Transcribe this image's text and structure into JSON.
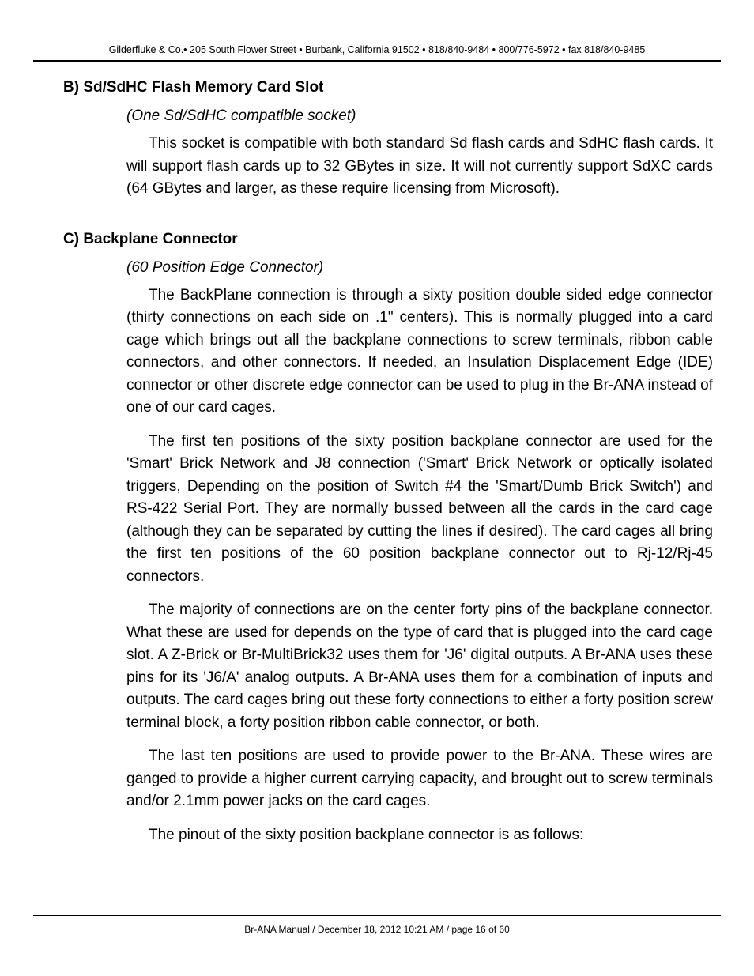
{
  "header": {
    "text": "Gilderfluke & Co.• 205 South Flower Street • Burbank, California 91502 • 818/840-9484 • 800/776-5972 • fax 818/840-9485"
  },
  "sections": {
    "b": {
      "heading": "B) Sd/SdHC Flash Memory Card Slot",
      "subtitle": "(One Sd/SdHC compatible socket)",
      "p1": "This socket is compatible with both standard Sd flash cards and SdHC flash cards. It will support flash cards up to 32 GBytes in size. It will not currently support SdXC cards (64 GBytes and larger, as these require licensing from Microsoft)."
    },
    "c": {
      "heading": "C) Backplane Connector",
      "subtitle": "(60 Position Edge Connector)",
      "p1": "The BackPlane connection is through a sixty position double sided edge connector (thirty connections on each side on .1\" centers). This is normally plugged into a card cage which brings out all the backplane connections to screw terminals, ribbon cable connectors, and other connectors. If needed, an Insulation Displacement Edge (IDE) connector or other discrete edge connector can be used to plug in the Br-ANA instead of one of our card cages.",
      "p2": "The first ten positions of the sixty position backplane connector are used for the 'Smart' Brick Network and J8 connection ('Smart' Brick Network or optically isolated triggers, Depending on the position of Switch #4 the 'Smart/Dumb Brick Switch') and RS-422 Serial Port. They are normally bussed between all the cards in the card cage (although they can be separated by cutting the lines if desired). The card cages all bring the first ten positions of the 60 position backplane connector out to Rj-12/Rj-45 connectors.",
      "p3": "The majority of connections are on the center forty pins of the backplane connector. What these are used for depends on the type of card that is plugged into the card cage slot. A Z-Brick or Br-MultiBrick32 uses them for 'J6' digital outputs. A Br-ANA uses these pins for its 'J6/A' analog outputs. A Br-ANA uses them for a combination of inputs and outputs. The card cages bring out these forty connections to either a forty position screw terminal block, a forty position ribbon cable connector, or both.",
      "p4": "The last ten positions are used to provide power to the Br-ANA. These wires are ganged to provide a higher current carrying capacity, and brought out to screw terminals and/or 2.1mm power jacks on the card cages.",
      "p5": "The pinout of the sixty position backplane connector is as follows:"
    }
  },
  "footer": {
    "text": "Br-ANA Manual / December 18, 2012 10:21 AM / page 16 of 60"
  }
}
